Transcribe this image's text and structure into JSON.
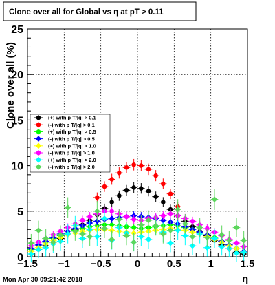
{
  "title": "Clone  over all for Global vs   η at pT > 0.11",
  "footer": {
    "datetime": "Mon Apr 30 09:21:42 2018"
  },
  "chart_data": {
    "type": "scatter",
    "xlabel": "η",
    "ylabel": "Clone  over all (%)",
    "xlim": [
      -1.5,
      1.5
    ],
    "ylim": [
      0,
      25
    ],
    "xticks": [
      -1.5,
      -1,
      -0.5,
      0,
      0.5,
      1,
      1.5
    ],
    "xtick_labels": [
      "−1.5",
      "−1",
      "−0.5",
      "0",
      "0.5",
      "1",
      "1.5"
    ],
    "yticks": [
      0,
      5,
      10,
      15,
      20,
      25
    ],
    "ytick_labels": [
      "0",
      "5",
      "10",
      "15",
      "20",
      "25"
    ],
    "grid": true,
    "legend_placement": "left",
    "x": [
      -1.45,
      -1.35,
      -1.25,
      -1.15,
      -1.05,
      -0.95,
      -0.85,
      -0.75,
      -0.65,
      -0.55,
      -0.45,
      -0.35,
      -0.25,
      -0.15,
      -0.05,
      0.05,
      0.15,
      0.25,
      0.35,
      0.45,
      0.55,
      0.65,
      0.75,
      0.85,
      0.95,
      1.05,
      1.15,
      1.25,
      1.35,
      1.45
    ],
    "series": [
      {
        "name": "(+) with p T/|q| > 0.1",
        "color": "#000000",
        "marker": "circle",
        "values": [
          0.3,
          0.8,
          1.2,
          1.6,
          2.0,
          2.5,
          3.0,
          3.5,
          4.0,
          4.6,
          5.3,
          6.0,
          6.7,
          7.3,
          7.6,
          7.5,
          7.2,
          6.6,
          6.0,
          5.2,
          4.5,
          3.9,
          3.3,
          2.8,
          2.3,
          1.8,
          1.3,
          0.9,
          0.5,
          0.3
        ]
      },
      {
        "name": "(-) with p T/|q| > 0.1",
        "color": "#ff0000",
        "marker": "circle",
        "values": [
          null,
          null,
          null,
          null,
          null,
          null,
          null,
          null,
          null,
          6.5,
          7.7,
          8.5,
          9.2,
          9.8,
          10.1,
          10.0,
          9.6,
          8.9,
          8.0,
          6.9,
          5.5,
          null,
          null,
          null,
          null,
          null,
          null,
          null,
          null,
          null
        ]
      },
      {
        "name": "(+) with p T/|q| > 0.5",
        "color": "#00ff00",
        "marker": "circle",
        "values": [
          0.8,
          1.2,
          1.6,
          2.0,
          2.3,
          2.6,
          2.9,
          3.1,
          3.3,
          3.4,
          3.5,
          3.5,
          3.4,
          3.3,
          3.2,
          3.1,
          3.2,
          3.3,
          3.4,
          3.5,
          3.4,
          3.2,
          3.0,
          2.7,
          2.4,
          2.1,
          1.7,
          1.3,
          0.9,
          0.6
        ]
      },
      {
        "name": "(-) with p T/|q| > 0.5",
        "color": "#0000ff",
        "marker": "diamond",
        "values": [
          0.9,
          1.3,
          1.7,
          2.1,
          2.5,
          2.8,
          3.1,
          3.4,
          3.7,
          3.9,
          4.1,
          4.2,
          4.3,
          4.4,
          4.5,
          4.4,
          4.3,
          4.2,
          4.0,
          3.8,
          3.6,
          3.3,
          3.0,
          2.7,
          2.4,
          2.0,
          1.7,
          1.3,
          0.9,
          0.6
        ]
      },
      {
        "name": "(+) with p T/|q| > 1.0",
        "color": "#ffff00",
        "marker": "diamond",
        "values": [
          0.6,
          1.0,
          1.4,
          1.8,
          2.1,
          2.4,
          2.6,
          2.8,
          2.9,
          3.0,
          3.0,
          2.9,
          2.8,
          2.7,
          2.6,
          2.7,
          2.8,
          2.9,
          3.0,
          3.1,
          3.0,
          2.9,
          2.7,
          2.5,
          2.2,
          1.9,
          1.6,
          1.2,
          0.9,
          0.5
        ]
      },
      {
        "name": "(-) with p T/|q| > 1.0",
        "color": "#ff00ff",
        "marker": "circle",
        "values": [
          1.2,
          1.6,
          2.0,
          2.4,
          2.8,
          3.2,
          3.6,
          4.0,
          4.4,
          4.7,
          5.0,
          5.0,
          4.7,
          4.4,
          4.1,
          4.0,
          4.2,
          4.3,
          4.5,
          4.7,
          4.5,
          4.2,
          3.9,
          3.5,
          3.1,
          2.7,
          2.3,
          1.9,
          1.5,
          1.1
        ]
      },
      {
        "name": "(+) with p T/|q| > 2.0",
        "color": "#00ffff",
        "marker": "diamond",
        "values": [
          0.3,
          0.8,
          1.0,
          1.4,
          1.7,
          2.5,
          3.4,
          2.0,
          3.0,
          2.2,
          4.2,
          1.8,
          3.2,
          2.6,
          1.6,
          2.2,
          1.9,
          3.4,
          2.7,
          1.5,
          2.9,
          2.3,
          1.2,
          2.5,
          1.0,
          2.0,
          1.1,
          0.9,
          0.4,
          0.5
        ]
      },
      {
        "name": "(-) with p T/|q| > 2.0",
        "color": "#5cd65c",
        "marker": "diamond",
        "values": [
          1.5,
          2.9,
          2.0,
          1.6,
          2.4,
          5.4,
          2.8,
          2.5,
          2.2,
          5.0,
          3.1,
          1.9,
          4.1,
          2.3,
          1.6,
          3.5,
          4.0,
          3.4,
          2.5,
          2.9,
          5.2,
          3.6,
          2.2,
          3.2,
          2.1,
          6.3,
          2.4,
          1.8,
          3.2,
          1.8
        ]
      }
    ]
  }
}
